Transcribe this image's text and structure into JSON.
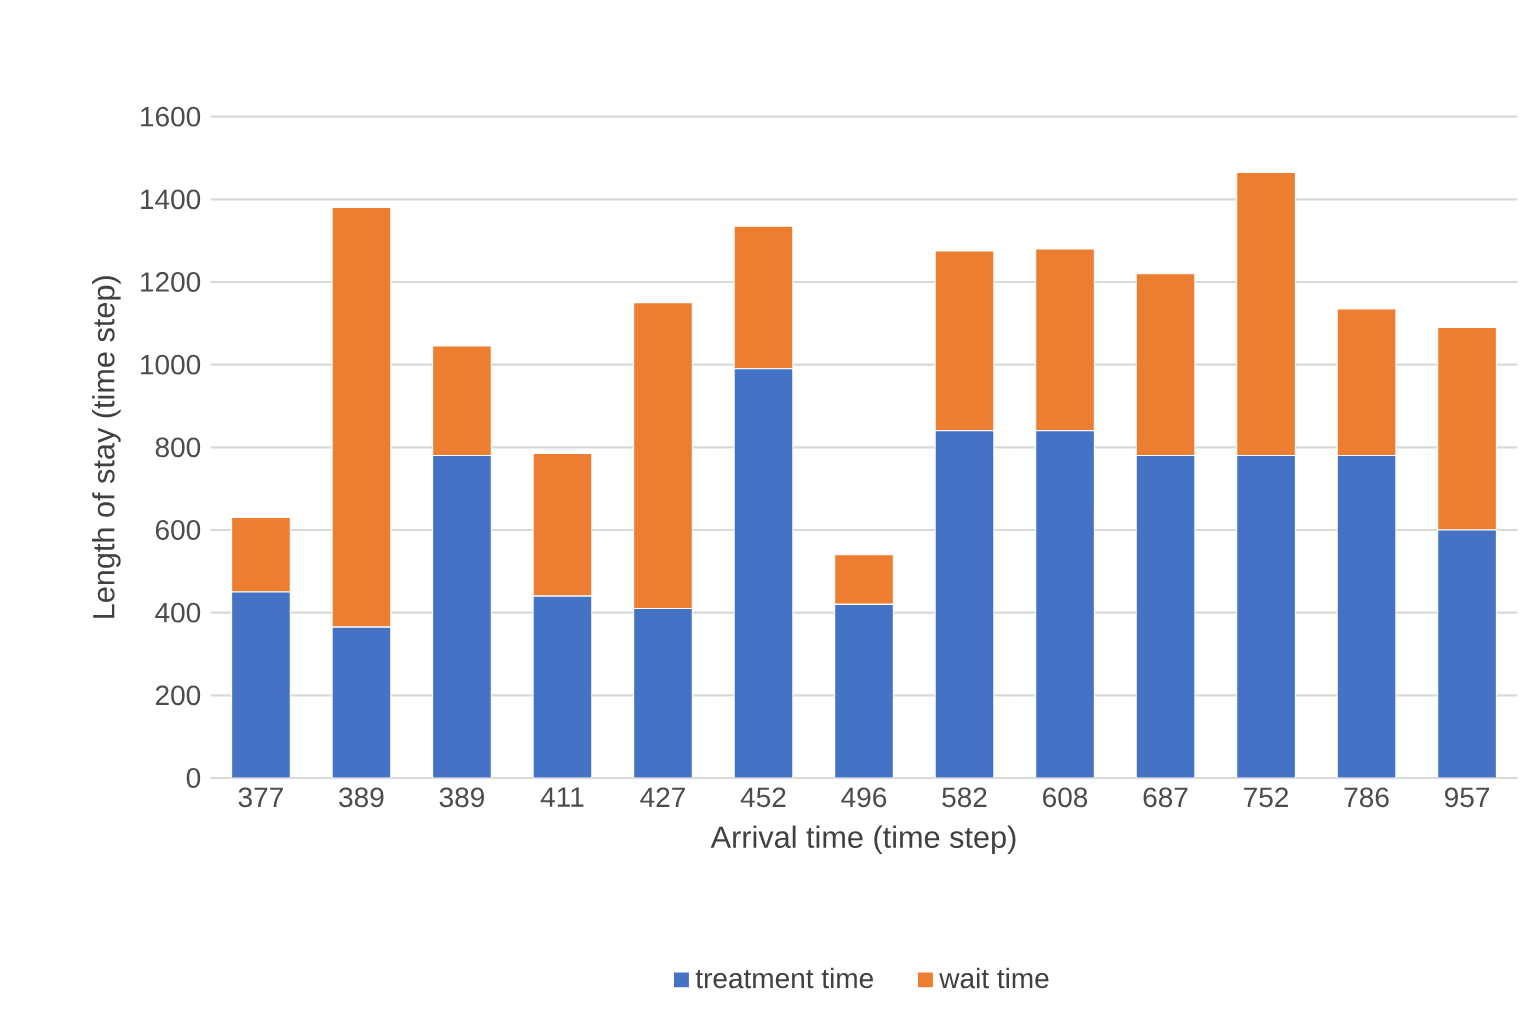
{
  "chart_data": {
    "type": "bar",
    "stacked": true,
    "xlabel": "Arrival time (time step)",
    "ylabel": "Length of stay (time step)",
    "categories": [
      "377",
      "389",
      "389",
      "411",
      "427",
      "452",
      "496",
      "582",
      "608",
      "687",
      "752",
      "786",
      "957"
    ],
    "series": [
      {
        "name": "treatment time",
        "color": "#4472c4",
        "values": [
          450,
          365,
          780,
          440,
          410,
          990,
          420,
          840,
          840,
          780,
          780,
          780,
          600
        ]
      },
      {
        "name": "wait time",
        "color": "#ed7d31",
        "values": [
          180,
          1015,
          265,
          345,
          740,
          345,
          120,
          435,
          440,
          440,
          685,
          355,
          490
        ]
      }
    ],
    "ylim": [
      0,
      1600
    ],
    "yticks": [
      0,
      200,
      400,
      600,
      800,
      1000,
      1200,
      1400,
      1600
    ],
    "grid": "y",
    "legend": "bottom"
  }
}
